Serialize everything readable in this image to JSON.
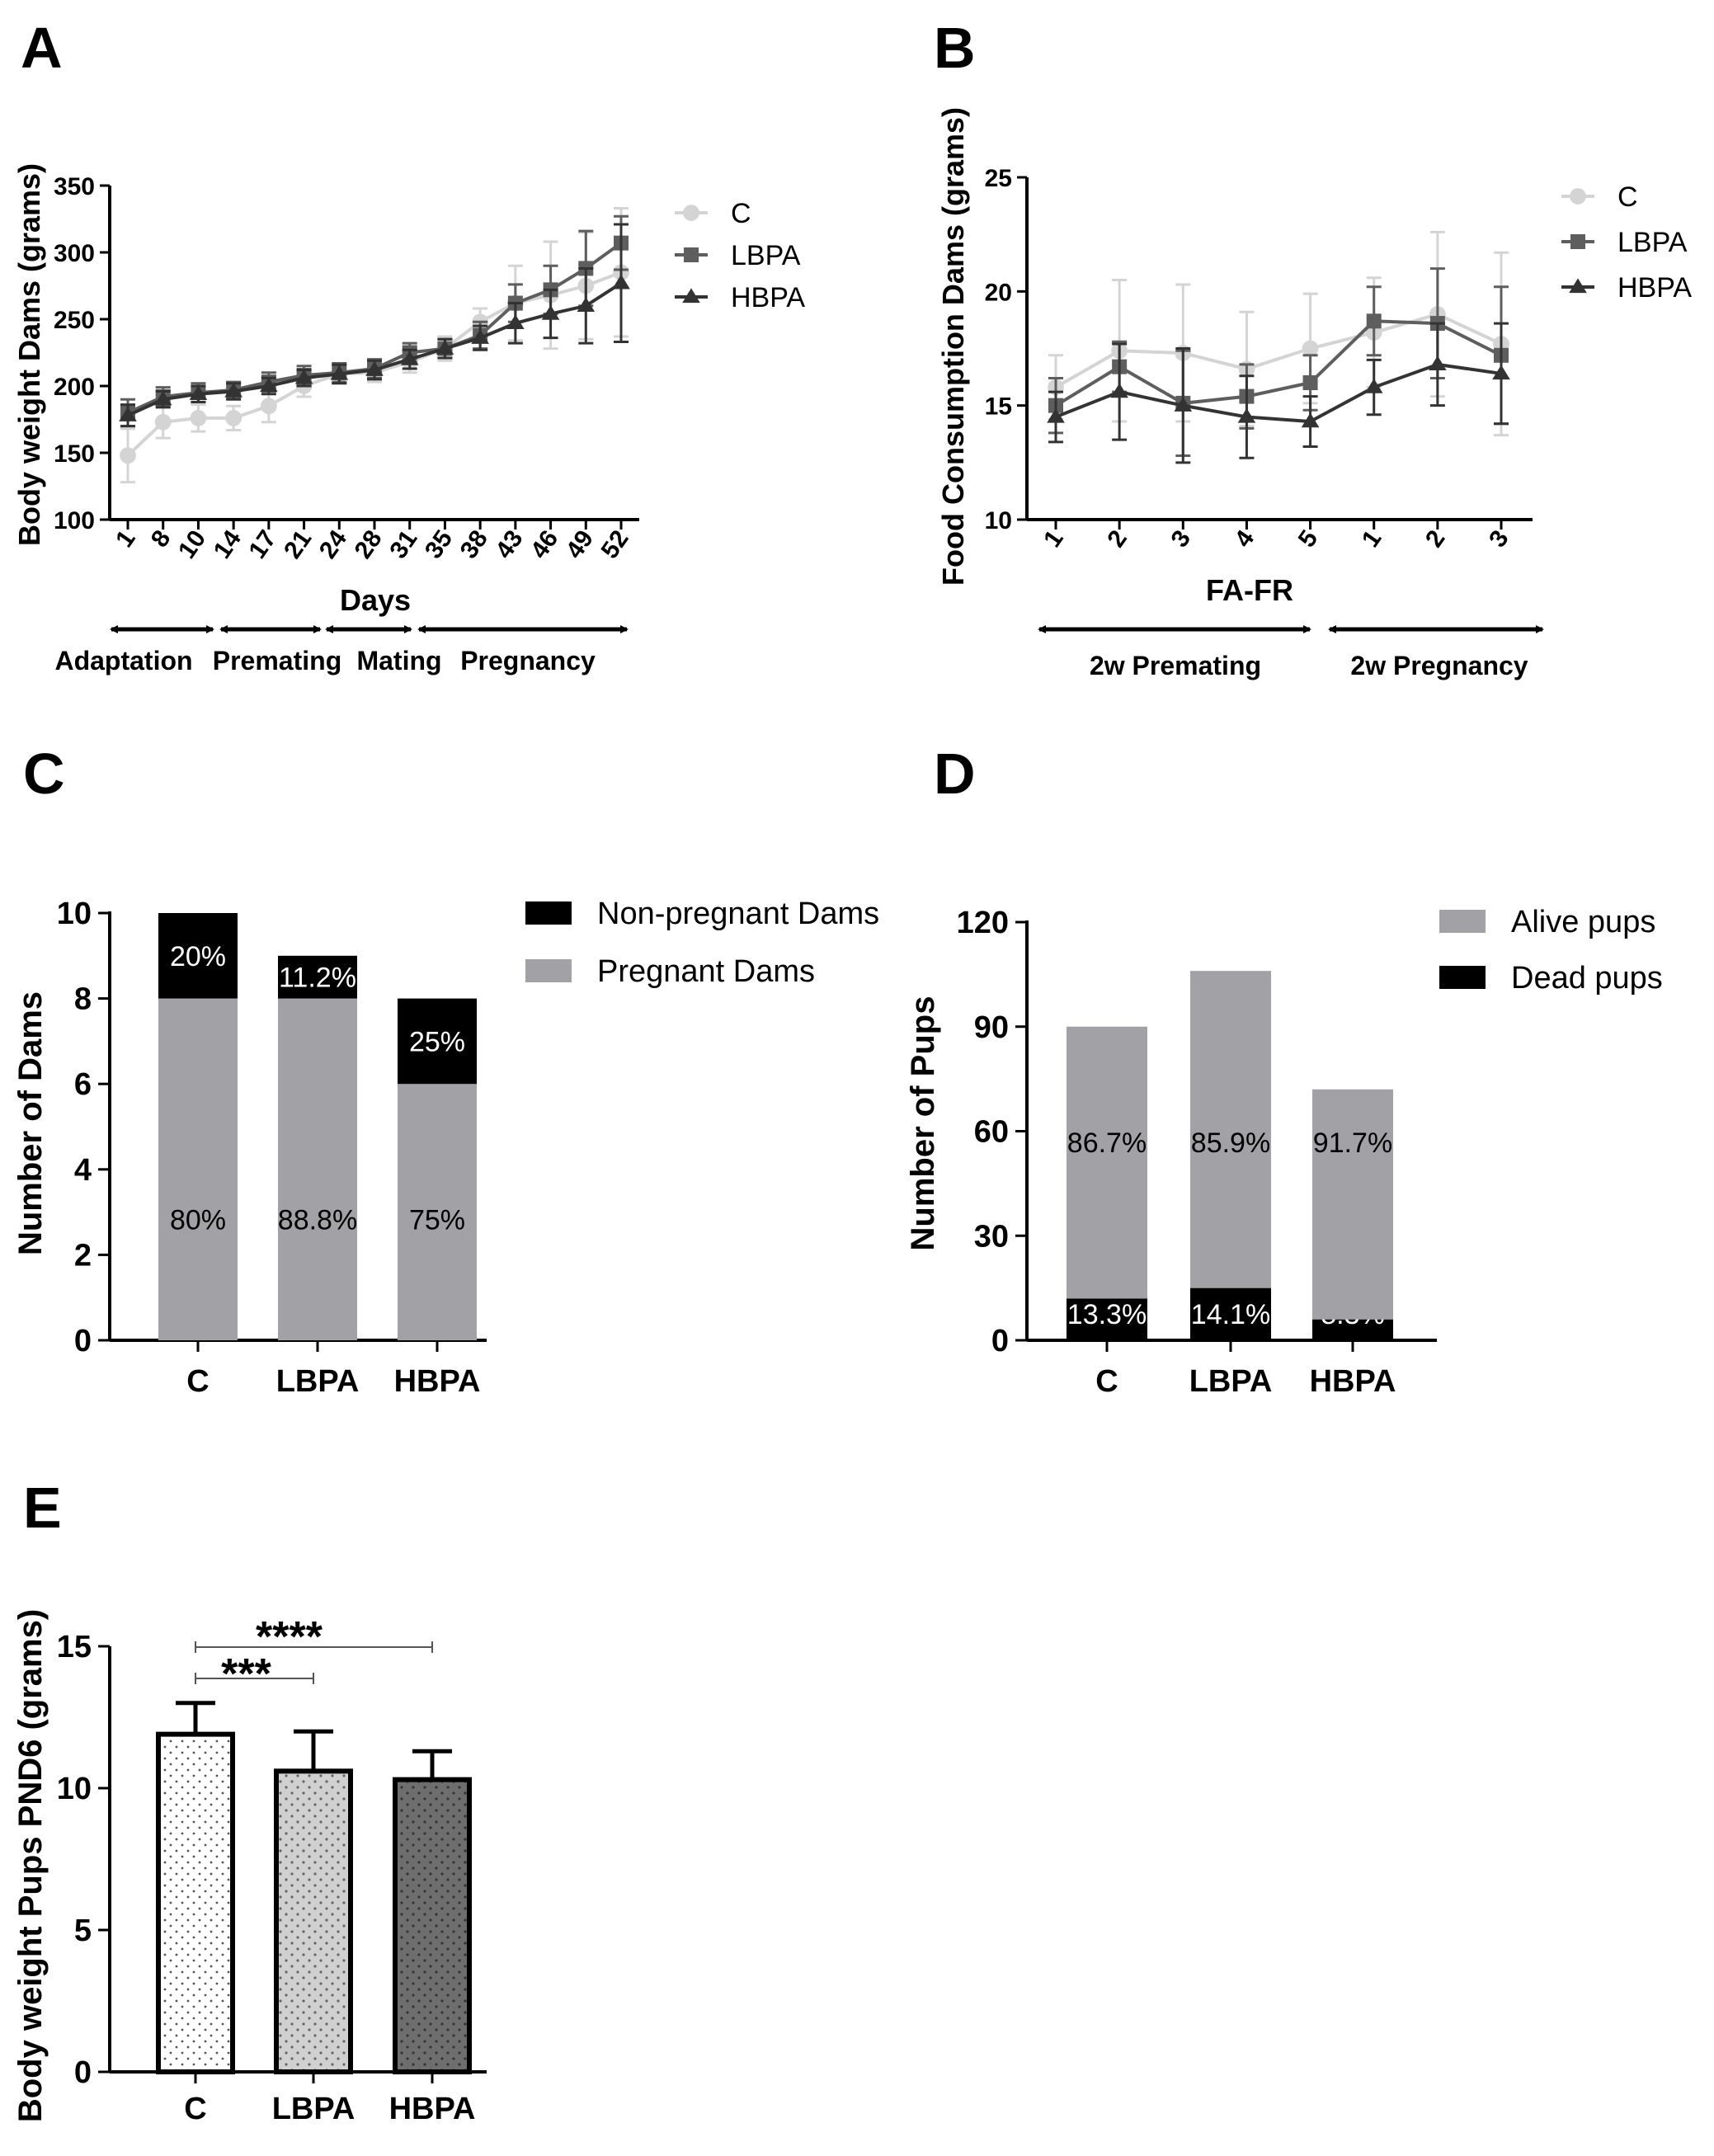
{
  "panels": {
    "A": {
      "letter": "A",
      "chart_data": {
        "type": "line",
        "ylabel": "Body weight Dams (grams)",
        "xlabel": "Days",
        "ylim": [
          100,
          350
        ],
        "yticks": [
          100,
          150,
          200,
          250,
          300,
          350
        ],
        "categories": [
          "1",
          "8",
          "10",
          "14",
          "17",
          "21",
          "24",
          "28",
          "31",
          "35",
          "38",
          "43",
          "46",
          "49",
          "52"
        ],
        "series": [
          {
            "name": "C",
            "color": "#d4d4d4",
            "marker": "circle",
            "values": [
              148,
              173,
              176,
              176,
              185,
              200,
              209,
              210,
              218,
              228,
              248,
              262,
              268,
              275,
              285
            ],
            "errors": [
              20,
              12,
              10,
              9,
              12,
              8,
              7,
              7,
              8,
              9,
              10,
              28,
              40,
              40,
              48
            ]
          },
          {
            "name": "LBPA",
            "color": "#5e5e5e",
            "marker": "square",
            "values": [
              180,
              192,
              195,
              197,
              203,
              208,
              210,
              213,
              225,
              228,
              238,
              262,
              272,
              288,
              307
            ],
            "errors": [
              10,
              7,
              7,
              6,
              7,
              7,
              7,
              7,
              7,
              7,
              10,
              14,
              18,
              28,
              20
            ]
          },
          {
            "name": "HBPA",
            "color": "#333333",
            "marker": "triangle",
            "values": [
              178,
              190,
              194,
              196,
              200,
              206,
              209,
              212,
              220,
              228,
              236,
              247,
              254,
              260,
              277
            ],
            "errors": [
              8,
              6,
              6,
              6,
              6,
              6,
              7,
              7,
              7,
              7,
              9,
              15,
              18,
              28,
              44
            ]
          }
        ],
        "phases": [
          "Adaptation",
          "Premating",
          "Mating",
          "Pregnancy"
        ]
      }
    },
    "B": {
      "letter": "B",
      "chart_data": {
        "type": "line",
        "ylabel": "Food Consumption Dams (grams)",
        "xlabel": "FA-FR",
        "ylim": [
          10,
          25
        ],
        "yticks": [
          10,
          15,
          20,
          25
        ],
        "categories": [
          "1",
          "2",
          "3",
          "4",
          "5",
          "1",
          "2",
          "3"
        ],
        "series": [
          {
            "name": "C",
            "color": "#d4d4d4",
            "marker": "circle",
            "values": [
              15.8,
              17.4,
              17.3,
              16.6,
              17.5,
              18.2,
              19.0,
              17.7
            ],
            "errors": [
              1.4,
              3.1,
              3.0,
              2.5,
              2.4,
              2.4,
              3.6,
              4.0
            ]
          },
          {
            "name": "LBPA",
            "color": "#5e5e5e",
            "marker": "square",
            "values": [
              15.0,
              16.7,
              15.1,
              15.4,
              16.0,
              18.7,
              18.6,
              17.2
            ],
            "errors": [
              1.2,
              1.1,
              2.3,
              1.4,
              1.2,
              1.5,
              2.4,
              3.0
            ]
          },
          {
            "name": "HBPA",
            "color": "#333333",
            "marker": "triangle",
            "values": [
              14.5,
              15.6,
              15.0,
              14.5,
              14.3,
              15.8,
              16.8,
              16.4
            ],
            "errors": [
              1.1,
              2.1,
              2.5,
              1.8,
              1.1,
              1.2,
              1.8,
              2.2
            ]
          }
        ],
        "phases": [
          "2w Premating",
          "2w Pregnancy"
        ]
      }
    },
    "C": {
      "letter": "C",
      "chart_data": {
        "type": "bar",
        "stacked": true,
        "ylabel": "Number of Dams",
        "ylim": [
          0,
          10
        ],
        "yticks": [
          0,
          2,
          4,
          6,
          8,
          10
        ],
        "categories": [
          "C",
          "LBPA",
          "HBPA"
        ],
        "series": [
          {
            "name": "Pregnant Dams",
            "color": "#a2a2a6",
            "values": [
              8,
              8,
              6
            ],
            "labels": [
              "80%",
              "88.8%",
              "75%"
            ]
          },
          {
            "name": "Non-pregnant Dams",
            "color": "#000000",
            "values": [
              2,
              1,
              2
            ],
            "labels": [
              "20%",
              "11.2%",
              "25%"
            ]
          }
        ],
        "legend_order": [
          "Non-pregnant Dams",
          "Pregnant Dams"
        ]
      }
    },
    "D": {
      "letter": "D",
      "chart_data": {
        "type": "bar",
        "stacked": true,
        "ylabel": "Number of Pups",
        "ylim": [
          0,
          120
        ],
        "yticks": [
          0,
          30,
          60,
          90,
          120
        ],
        "categories": [
          "C",
          "LBPA",
          "HBPA"
        ],
        "series": [
          {
            "name": "Dead pups",
            "color": "#000000",
            "values": [
              12,
              15,
              6
            ],
            "labels": [
              "13.3%",
              "14.1%",
              "8.3%"
            ]
          },
          {
            "name": "Alive pups",
            "color": "#a2a2a6",
            "values": [
              78,
              91,
              66
            ],
            "labels": [
              "86.7%",
              "85.9%",
              "91.7%"
            ]
          }
        ],
        "legend_order": [
          "Alive pups",
          "Dead pups"
        ]
      }
    },
    "E": {
      "letter": "E",
      "chart_data": {
        "type": "bar",
        "ylabel": "Body weight Pups PND6 (grams)",
        "ylim": [
          0,
          15
        ],
        "yticks": [
          0,
          5,
          10,
          15
        ],
        "categories": [
          "C",
          "LBPA",
          "HBPA"
        ],
        "values": [
          11.9,
          10.6,
          10.3
        ],
        "errors": [
          1.1,
          1.4,
          1.0
        ],
        "fills": [
          "#ffffff",
          "#d0d0d0",
          "#707070"
        ],
        "significance": [
          {
            "from": "C",
            "to": "LBPA",
            "label": "***"
          },
          {
            "from": "C",
            "to": "HBPA",
            "label": "****"
          }
        ]
      }
    }
  }
}
